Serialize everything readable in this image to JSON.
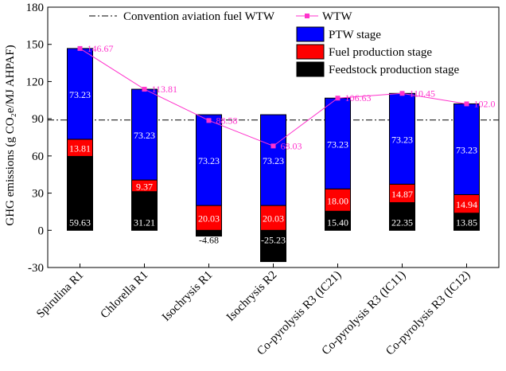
{
  "chart_data": {
    "type": "bar",
    "stacked": true,
    "ylabel": "GHG emissions (g CO₂e/MJ AHPAF)",
    "ylim": [
      -30,
      180
    ],
    "yticks": [
      "-30",
      "0",
      "30",
      "60",
      "90",
      "120",
      "150",
      "180"
    ],
    "categories": [
      "Spirulina R1",
      "Chlorella R1",
      "Isochrysis R1",
      "Isochrysis R2",
      "Co-pyrolysis R3 (IC21)",
      "Co-pyrolysis R3 (IC11)",
      "Co-pyrolysis R3 (IC12)"
    ],
    "series": [
      {
        "name": "Feedstock production stage",
        "color": "#000000",
        "values": [
          59.63,
          31.21,
          -4.68,
          -25.23,
          15.4,
          22.35,
          13.85
        ],
        "labels": [
          "59.63",
          "31.21",
          "-4.68",
          "-25.23",
          "15.40",
          "22.35",
          "13.85"
        ]
      },
      {
        "name": "Fuel production stage",
        "color": "#ff0000",
        "values": [
          13.81,
          9.37,
          20.03,
          20.03,
          18.0,
          14.87,
          14.94
        ],
        "labels": [
          "13.81",
          "9.37",
          "20.03",
          "20.03",
          "18.00",
          "14.87",
          "14.94"
        ]
      },
      {
        "name": "PTW stage",
        "color": "#0000ff",
        "values": [
          73.23,
          73.23,
          73.23,
          73.23,
          73.23,
          73.23,
          73.23
        ],
        "labels": [
          "73.23",
          "73.23",
          "73.23",
          "73.23",
          "73.23",
          "73.23",
          "73.23"
        ]
      }
    ],
    "wtw": {
      "name": "WTW",
      "color": "#ff33cc",
      "values": [
        146.67,
        113.81,
        88.58,
        68.03,
        106.63,
        110.45,
        102.0
      ],
      "labels": [
        "146.67",
        "113.81",
        "88.58",
        "68.03",
        "106.63",
        "110.45",
        "102.0"
      ]
    },
    "reference": {
      "name": "Convention aviation fuel WTW",
      "value": 89
    }
  }
}
